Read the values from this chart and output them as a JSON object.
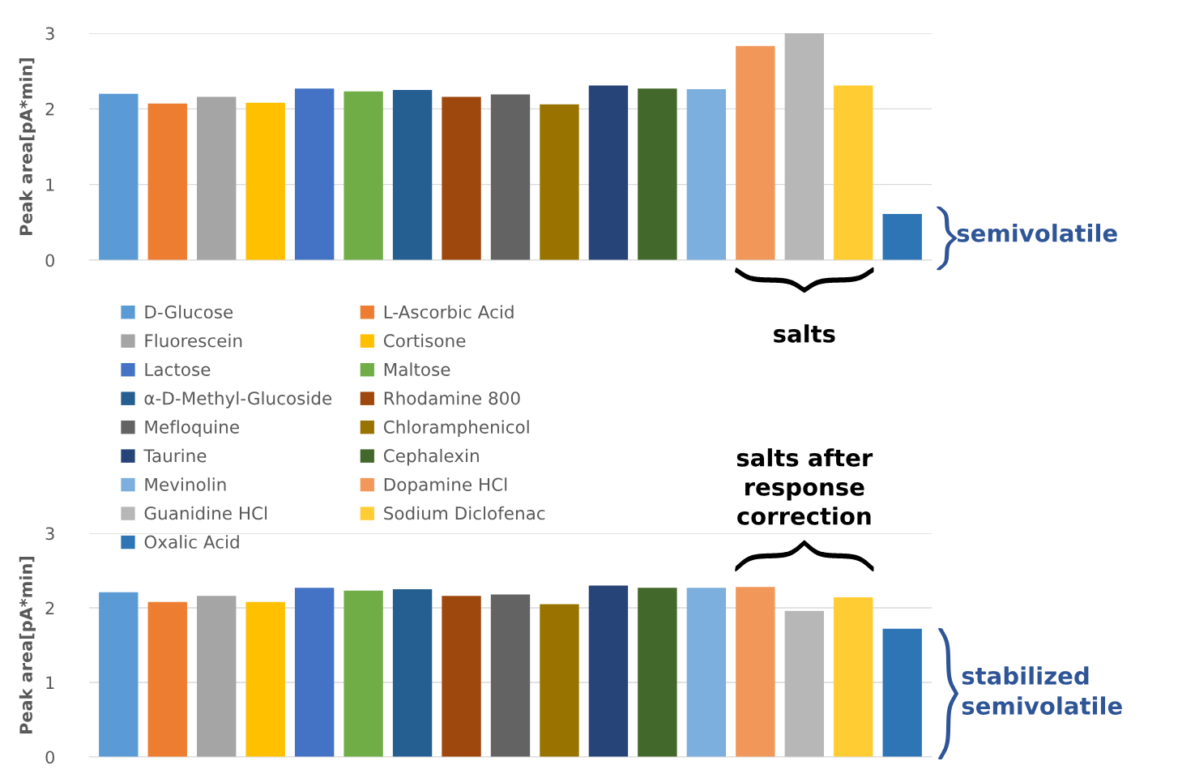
{
  "chart_data": [
    {
      "type": "bar",
      "ylabel": "Peak area[pA*min]",
      "categories": [
        null,
        null,
        null,
        null,
        null,
        null,
        null,
        null,
        null,
        null,
        null,
        null,
        null,
        null,
        null,
        null,
        null
      ],
      "series": [
        {
          "name": "D-Glucose",
          "color": "#5b9bd5",
          "values": [
            2.2,
            null,
            null,
            null,
            null,
            null,
            null,
            null,
            null,
            null,
            null,
            null,
            null,
            null,
            null,
            null,
            null
          ]
        },
        {
          "name": "L-Ascorbic Acid",
          "color": "#ed7d31",
          "values": [
            null,
            2.07,
            null,
            null,
            null,
            null,
            null,
            null,
            null,
            null,
            null,
            null,
            null,
            null,
            null,
            null,
            null
          ]
        },
        {
          "name": "Fluorescein",
          "color": "#a5a5a5",
          "values": [
            null,
            null,
            2.16,
            null,
            null,
            null,
            null,
            null,
            null,
            null,
            null,
            null,
            null,
            null,
            null,
            null,
            null
          ]
        },
        {
          "name": "Cortisone",
          "color": "#ffc000",
          "values": [
            null,
            null,
            null,
            2.08,
            null,
            null,
            null,
            null,
            null,
            null,
            null,
            null,
            null,
            null,
            null,
            null,
            null
          ]
        },
        {
          "name": "Lactose",
          "color": "#4472c4",
          "values": [
            null,
            null,
            null,
            null,
            2.27,
            null,
            null,
            null,
            null,
            null,
            null,
            null,
            null,
            null,
            null,
            null,
            null
          ]
        },
        {
          "name": "Maltose",
          "color": "#70ad47",
          "values": [
            null,
            null,
            null,
            null,
            null,
            2.23,
            null,
            null,
            null,
            null,
            null,
            null,
            null,
            null,
            null,
            null,
            null
          ]
        },
        {
          "name": "α-D-Methyl-Glucoside",
          "color": "#255e91",
          "values": [
            null,
            null,
            null,
            null,
            null,
            null,
            2.25,
            null,
            null,
            null,
            null,
            null,
            null,
            null,
            null,
            null,
            null
          ]
        },
        {
          "name": "Rhodamine 800",
          "color": "#9e480e",
          "values": [
            null,
            null,
            null,
            null,
            null,
            null,
            null,
            2.16,
            null,
            null,
            null,
            null,
            null,
            null,
            null,
            null,
            null
          ]
        },
        {
          "name": "Mefloquine",
          "color": "#636363",
          "values": [
            null,
            null,
            null,
            null,
            null,
            null,
            null,
            null,
            2.19,
            null,
            null,
            null,
            null,
            null,
            null,
            null,
            null
          ]
        },
        {
          "name": "Chloramphenicol",
          "color": "#997300",
          "values": [
            null,
            null,
            null,
            null,
            null,
            null,
            null,
            null,
            null,
            2.06,
            null,
            null,
            null,
            null,
            null,
            null,
            null
          ]
        },
        {
          "name": "Taurine",
          "color": "#264478",
          "values": [
            null,
            null,
            null,
            null,
            null,
            null,
            null,
            null,
            null,
            null,
            2.31,
            null,
            null,
            null,
            null,
            null,
            null
          ]
        },
        {
          "name": "Cephalexin",
          "color": "#43682b",
          "values": [
            null,
            null,
            null,
            null,
            null,
            null,
            null,
            null,
            null,
            null,
            null,
            2.27,
            null,
            null,
            null,
            null,
            null
          ]
        },
        {
          "name": "Mevinolin",
          "color": "#7cafdd",
          "values": [
            null,
            null,
            null,
            null,
            null,
            null,
            null,
            null,
            null,
            null,
            null,
            null,
            2.26,
            null,
            null,
            null,
            null
          ]
        },
        {
          "name": "Dopamine HCl",
          "color": "#f1975a",
          "values": [
            null,
            null,
            null,
            null,
            null,
            null,
            null,
            null,
            null,
            null,
            null,
            null,
            null,
            2.83,
            null,
            null,
            null
          ]
        },
        {
          "name": "Guanidine HCl",
          "color": "#b7b7b7",
          "values": [
            null,
            null,
            null,
            null,
            null,
            null,
            null,
            null,
            null,
            null,
            null,
            null,
            null,
            null,
            3.0,
            null,
            null
          ]
        },
        {
          "name": "Sodium Diclofenac",
          "color": "#ffcd33",
          "values": [
            null,
            null,
            null,
            null,
            null,
            null,
            null,
            null,
            null,
            null,
            null,
            null,
            null,
            null,
            null,
            2.31,
            null
          ]
        },
        {
          "name": "Oxalic Acid",
          "color": "#2e75b6",
          "values": [
            null,
            null,
            null,
            null,
            null,
            null,
            null,
            null,
            null,
            null,
            null,
            null,
            null,
            null,
            null,
            null,
            0.61
          ]
        }
      ],
      "ylim": [
        0,
        3
      ],
      "yticks": [
        0,
        1,
        2,
        3
      ],
      "grid": "y",
      "legend": "bottom",
      "tick_labels": "y",
      "annotations": [
        "semivolatile",
        "salts"
      ]
    },
    {
      "type": "bar",
      "ylabel": "Peak area[pA*min]",
      "categories": [
        null,
        null,
        null,
        null,
        null,
        null,
        null,
        null,
        null,
        null,
        null,
        null,
        null,
        null,
        null,
        null,
        null
      ],
      "series": [
        {
          "color": "#5b9bd5",
          "values": [
            2.21,
            null,
            null,
            null,
            null,
            null,
            null,
            null,
            null,
            null,
            null,
            null,
            null,
            null,
            null,
            null,
            null
          ]
        },
        {
          "color": "#ed7d31",
          "values": [
            null,
            2.08,
            null,
            null,
            null,
            null,
            null,
            null,
            null,
            null,
            null,
            null,
            null,
            null,
            null,
            null,
            null
          ]
        },
        {
          "color": "#a5a5a5",
          "values": [
            null,
            null,
            2.16,
            null,
            null,
            null,
            null,
            null,
            null,
            null,
            null,
            null,
            null,
            null,
            null,
            null,
            null
          ]
        },
        {
          "color": "#ffc000",
          "values": [
            null,
            null,
            null,
            2.08,
            null,
            null,
            null,
            null,
            null,
            null,
            null,
            null,
            null,
            null,
            null,
            null,
            null
          ]
        },
        {
          "color": "#4472c4",
          "values": [
            null,
            null,
            null,
            null,
            2.27,
            null,
            null,
            null,
            null,
            null,
            null,
            null,
            null,
            null,
            null,
            null,
            null
          ]
        },
        {
          "color": "#70ad47",
          "values": [
            null,
            null,
            null,
            null,
            null,
            2.23,
            null,
            null,
            null,
            null,
            null,
            null,
            null,
            null,
            null,
            null,
            null
          ]
        },
        {
          "color": "#255e91",
          "values": [
            null,
            null,
            null,
            null,
            null,
            null,
            2.25,
            null,
            null,
            null,
            null,
            null,
            null,
            null,
            null,
            null,
            null
          ]
        },
        {
          "color": "#9e480e",
          "values": [
            null,
            null,
            null,
            null,
            null,
            null,
            null,
            2.16,
            null,
            null,
            null,
            null,
            null,
            null,
            null,
            null,
            null
          ]
        },
        {
          "color": "#636363",
          "values": [
            null,
            null,
            null,
            null,
            null,
            null,
            null,
            null,
            2.18,
            null,
            null,
            null,
            null,
            null,
            null,
            null,
            null
          ]
        },
        {
          "color": "#997300",
          "values": [
            null,
            null,
            null,
            null,
            null,
            null,
            null,
            null,
            null,
            2.05,
            null,
            null,
            null,
            null,
            null,
            null,
            null
          ]
        },
        {
          "color": "#264478",
          "values": [
            null,
            null,
            null,
            null,
            null,
            null,
            null,
            null,
            null,
            null,
            2.3,
            null,
            null,
            null,
            null,
            null,
            null
          ]
        },
        {
          "color": "#43682b",
          "values": [
            null,
            null,
            null,
            null,
            null,
            null,
            null,
            null,
            null,
            null,
            null,
            2.27,
            null,
            null,
            null,
            null,
            null
          ]
        },
        {
          "color": "#7cafdd",
          "values": [
            null,
            null,
            null,
            null,
            null,
            null,
            null,
            null,
            null,
            null,
            null,
            null,
            2.27,
            null,
            null,
            null,
            null
          ]
        },
        {
          "color": "#f1975a",
          "values": [
            null,
            null,
            null,
            null,
            null,
            null,
            null,
            null,
            null,
            null,
            null,
            null,
            null,
            2.28,
            null,
            null,
            null
          ]
        },
        {
          "color": "#b7b7b7",
          "values": [
            null,
            null,
            null,
            null,
            null,
            null,
            null,
            null,
            null,
            null,
            null,
            null,
            null,
            null,
            1.96,
            null,
            null
          ]
        },
        {
          "color": "#ffcd33",
          "values": [
            null,
            null,
            null,
            null,
            null,
            null,
            null,
            null,
            null,
            null,
            null,
            null,
            null,
            null,
            null,
            2.14,
            null
          ]
        },
        {
          "color": "#2e75b6",
          "values": [
            null,
            null,
            null,
            null,
            null,
            null,
            null,
            null,
            null,
            null,
            null,
            null,
            null,
            null,
            null,
            null,
            1.72
          ]
        }
      ],
      "ylim": [
        0,
        3
      ],
      "yticks": [
        0,
        1,
        2,
        3
      ],
      "grid": "y",
      "tick_labels": "y",
      "annotations": [
        "salts after\nresponse\ncorrection",
        "stabilized\nsemivolatile"
      ]
    }
  ]
}
